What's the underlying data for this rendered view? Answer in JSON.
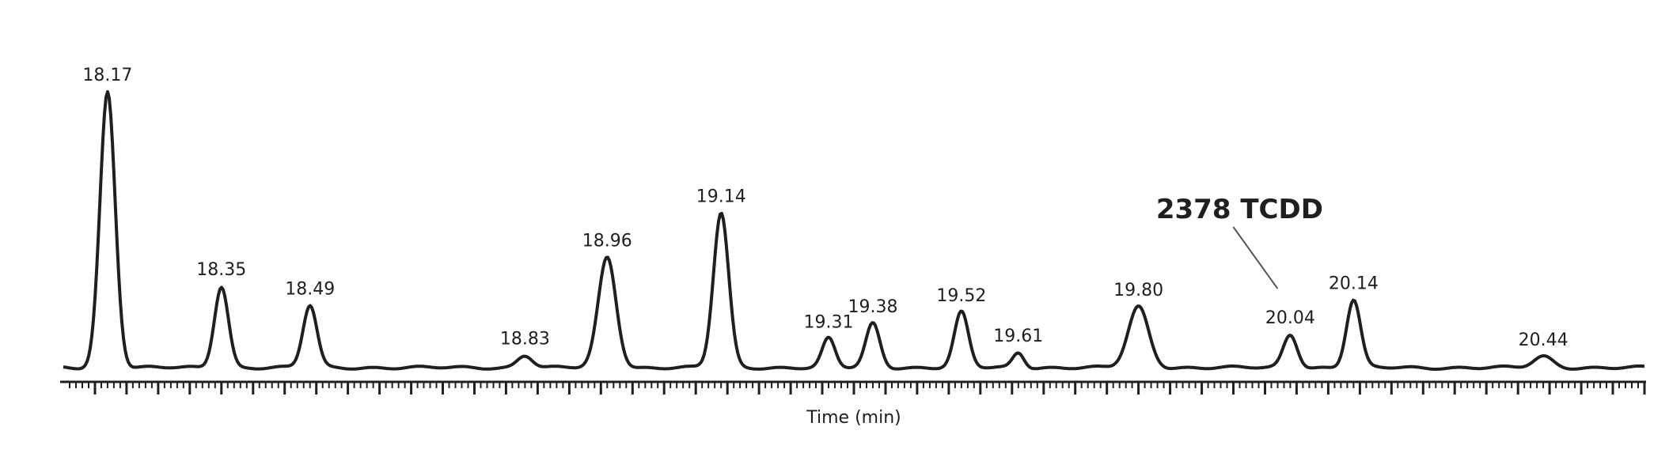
{
  "chart_data": {
    "type": "line",
    "xlabel": "Time (min)",
    "ylabel": "",
    "title": "",
    "xlim": [
      18.1,
      20.6
    ],
    "ylim": [
      0,
      100
    ],
    "grid": false,
    "line_color": "#1f1f1f",
    "baseline_y": 0,
    "peaks": [
      {
        "label": "18.17",
        "x": 18.17,
        "y": 100,
        "width": 0.012
      },
      {
        "label": "18.35",
        "x": 18.35,
        "y": 29.5,
        "width": 0.011
      },
      {
        "label": "18.49",
        "x": 18.49,
        "y": 22.5,
        "width": 0.011
      },
      {
        "label": "18.83",
        "x": 18.83,
        "y": 4.5,
        "width": 0.012
      },
      {
        "label": "18.96",
        "x": 18.96,
        "y": 40,
        "width": 0.014
      },
      {
        "label": "19.14",
        "x": 19.14,
        "y": 56,
        "width": 0.012
      },
      {
        "label": "19.31",
        "x": 19.31,
        "y": 10.5,
        "width": 0.01
      },
      {
        "label": "19.38",
        "x": 19.38,
        "y": 16,
        "width": 0.011
      },
      {
        "label": "19.52",
        "x": 19.52,
        "y": 20,
        "width": 0.011
      },
      {
        "label": "19.61",
        "x": 19.61,
        "y": 5.5,
        "width": 0.009
      },
      {
        "label": "19.80",
        "x": 19.8,
        "y": 22,
        "width": 0.016
      },
      {
        "label": "20.04",
        "x": 20.04,
        "y": 12,
        "width": 0.011
      },
      {
        "label": "20.14",
        "x": 20.14,
        "y": 24.5,
        "width": 0.011
      },
      {
        "label": "20.44",
        "x": 20.44,
        "y": 4,
        "width": 0.015
      }
    ],
    "annotations": [
      {
        "text": "2378 TCDD",
        "points_to_x": 20.04
      }
    ]
  }
}
